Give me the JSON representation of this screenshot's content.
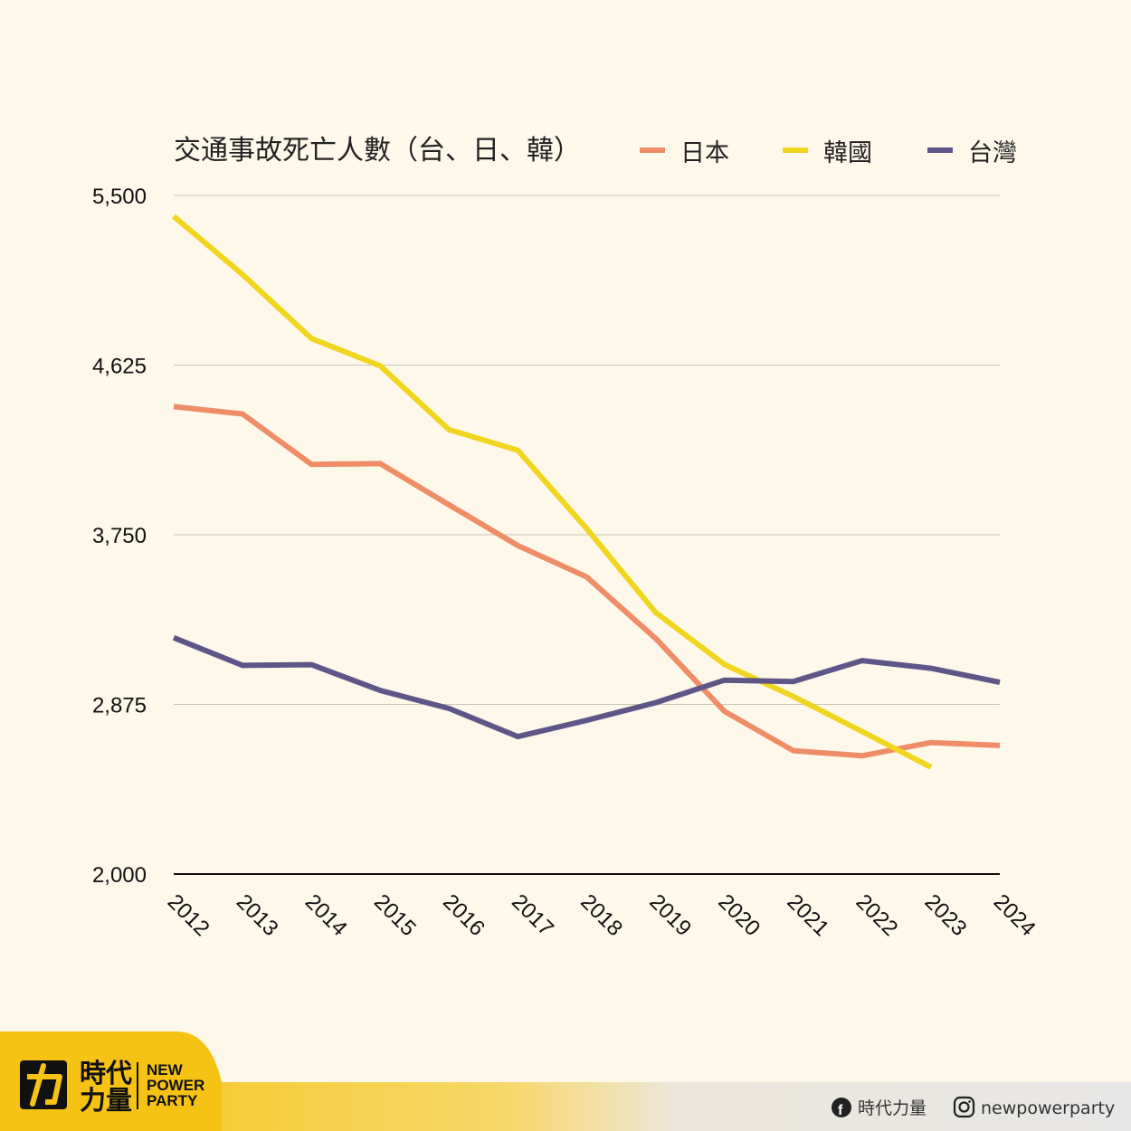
{
  "chart_data": {
    "type": "line",
    "title": "交通事故死亡人數（台、日、韓）",
    "categories": [
      "2012",
      "2013",
      "2014",
      "2015",
      "2016",
      "2017",
      "2018",
      "2019",
      "2020",
      "2021",
      "2022",
      "2023",
      "2024"
    ],
    "ylim": [
      2000,
      5500
    ],
    "yticks": [
      "5,500",
      "4,625",
      "3,750",
      "2,875",
      "2,000"
    ],
    "ytick_values": [
      5500,
      4625,
      3750,
      2875,
      2000
    ],
    "grid": true,
    "legend_position": "top-right",
    "series": [
      {
        "name": "日本",
        "color": "#ee8d66",
        "values": [
          4411,
          4373,
          4113,
          4117,
          3904,
          3694,
          3532,
          3215,
          2839,
          2636,
          2610,
          2678,
          2663
        ]
      },
      {
        "name": "韓國",
        "color": "#f1d51f",
        "values": [
          5392,
          5092,
          4762,
          4621,
          4292,
          4185,
          3781,
          3349,
          3081,
          2916,
          2735,
          2551,
          null
        ]
      },
      {
        "name": "台灣",
        "color": "#5e5688",
        "values": [
          3219,
          3076,
          3080,
          2947,
          2854,
          2709,
          2793,
          2884,
          3000,
          2993,
          3101,
          3061,
          2989
        ]
      }
    ]
  },
  "footer": {
    "logo_zh_1": "時代",
    "logo_zh_2": "力量",
    "logo_en_1": "NEW",
    "logo_en_2": "POWER",
    "logo_en_3": "PARTY",
    "facebook_label": "時代力量",
    "instagram_label": "newpowerparty",
    "facebook_icon": "facebook-icon",
    "instagram_icon": "instagram-icon",
    "brand_color": "#f6c315"
  }
}
